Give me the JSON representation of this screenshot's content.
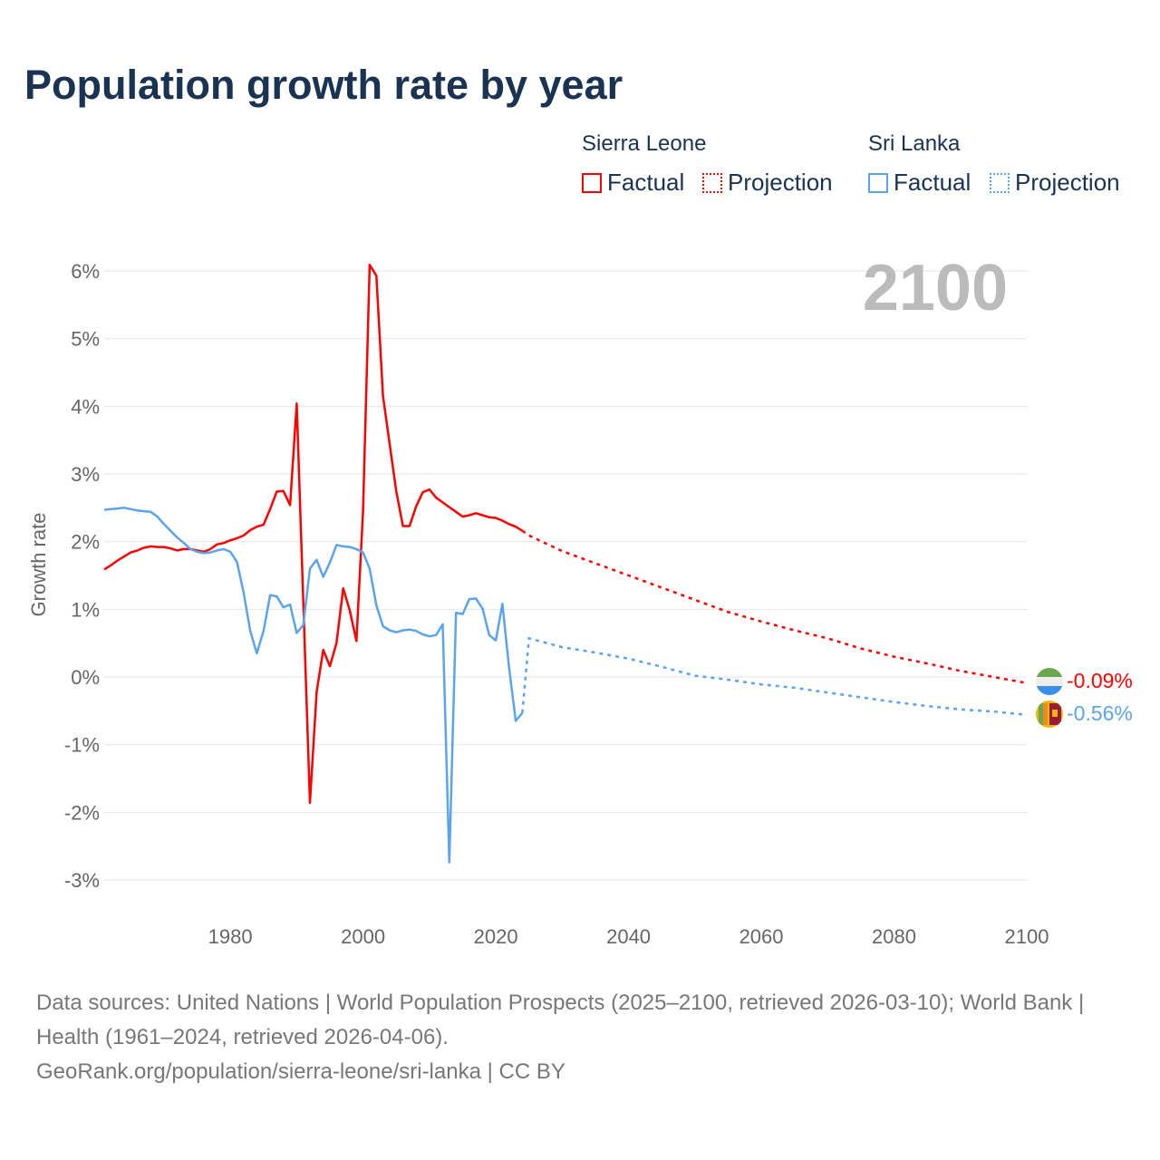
{
  "title": "Population growth rate by year",
  "legend": {
    "groups": [
      {
        "country": "Sierra Leone",
        "color": "#ff0000",
        "factual": "Factual",
        "projection": "Projection"
      },
      {
        "country": "Sri Lanka",
        "color": "#5ba4ec",
        "factual": "Factual",
        "projection": "Projection"
      }
    ]
  },
  "footer": {
    "sources": "Data sources: United Nations | World Population Prospects (2025–2100, retrieved 2026-03-10); World Bank | Health (1961–2024, retrieved 2026-04-06).",
    "credit": "GeoRank.org/population/sierra-leone/sri-lanka | CC BY"
  },
  "chart_data": {
    "type": "line",
    "title": "Population growth rate by year",
    "current_year_label": "2100",
    "xlabel": "",
    "ylabel": "Growth rate",
    "xlim": [
      1961,
      2100
    ],
    "ylim": [
      -3,
      6
    ],
    "x_ticks": [
      1980,
      2000,
      2020,
      2040,
      2060,
      2080,
      2100
    ],
    "x_tick_labels": [
      "1980",
      "2000",
      "2020",
      "2040",
      "2060",
      "2080",
      "2100"
    ],
    "y_ticks": [
      -3,
      -2,
      -1,
      0,
      1,
      2,
      3,
      4,
      5,
      6
    ],
    "y_tick_labels": [
      "-3%",
      "-2%",
      "-1%",
      "0%",
      "1%",
      "2%",
      "3%",
      "4%",
      "5%",
      "6%"
    ],
    "grid": true,
    "legend_position": "top-right",
    "series": [
      {
        "name": "Sierra Leone",
        "color": "#ff0000",
        "end_label": "-0.09%",
        "factual": {
          "x": [
            1961,
            1962,
            1963,
            1964,
            1965,
            1966,
            1967,
            1968,
            1969,
            1970,
            1971,
            1972,
            1973,
            1974,
            1975,
            1976,
            1977,
            1978,
            1979,
            1980,
            1981,
            1982,
            1983,
            1984,
            1985,
            1986,
            1987,
            1988,
            1989,
            1990,
            1991,
            1992,
            1993,
            1994,
            1995,
            1996,
            1997,
            1998,
            1999,
            2000,
            2001,
            2002,
            2003,
            2004,
            2005,
            2006,
            2007,
            2008,
            2009,
            2010,
            2011,
            2012,
            2013,
            2014,
            2015,
            2016,
            2017,
            2018,
            2019,
            2020,
            2021,
            2022,
            2023,
            2024
          ],
          "y": [
            1.59,
            1.65,
            1.72,
            1.78,
            1.84,
            1.87,
            1.91,
            1.93,
            1.92,
            1.92,
            1.9,
            1.87,
            1.89,
            1.89,
            1.87,
            1.85,
            1.89,
            1.96,
            1.98,
            2.02,
            2.05,
            2.09,
            2.17,
            2.22,
            2.25,
            2.48,
            2.74,
            2.75,
            2.54,
            4.04,
            1.1,
            -1.86,
            -0.22,
            0.4,
            0.16,
            0.5,
            1.31,
            0.98,
            0.53,
            2.45,
            6.09,
            5.93,
            4.15,
            3.45,
            2.75,
            2.23,
            2.23,
            2.52,
            2.73,
            2.77,
            2.65,
            2.58,
            2.51,
            2.44,
            2.37,
            2.39,
            2.42,
            2.39,
            2.36,
            2.35,
            2.31,
            2.26,
            2.22,
            2.16
          ]
        },
        "projection": {
          "x": [
            2024,
            2025,
            2030,
            2035,
            2040,
            2045,
            2050,
            2055,
            2060,
            2065,
            2070,
            2075,
            2080,
            2085,
            2090,
            2095,
            2100
          ],
          "y": [
            2.16,
            2.09,
            1.86,
            1.68,
            1.5,
            1.32,
            1.14,
            0.96,
            0.82,
            0.69,
            0.57,
            0.42,
            0.3,
            0.2,
            0.09,
            0.0,
            -0.09
          ]
        }
      },
      {
        "name": "Sri Lanka",
        "color": "#5ba4ec",
        "end_label": "-0.56%",
        "factual": {
          "x": [
            1961,
            1962,
            1963,
            1964,
            1965,
            1966,
            1967,
            1968,
            1969,
            1970,
            1971,
            1972,
            1973,
            1974,
            1975,
            1976,
            1977,
            1978,
            1979,
            1980,
            1981,
            1982,
            1983,
            1984,
            1985,
            1986,
            1987,
            1988,
            1989,
            1990,
            1991,
            1992,
            1993,
            1994,
            1995,
            1996,
            1997,
            1998,
            1999,
            2000,
            2001,
            2002,
            2003,
            2004,
            2005,
            2006,
            2007,
            2008,
            2009,
            2010,
            2011,
            2012,
            2013,
            2014,
            2015,
            2016,
            2017,
            2018,
            2019,
            2020,
            2021,
            2022,
            2023,
            2024
          ],
          "y": [
            2.47,
            2.48,
            2.49,
            2.5,
            2.48,
            2.46,
            2.45,
            2.44,
            2.37,
            2.26,
            2.16,
            2.06,
            1.98,
            1.89,
            1.85,
            1.83,
            1.84,
            1.87,
            1.89,
            1.85,
            1.7,
            1.25,
            0.68,
            0.35,
            0.68,
            1.21,
            1.19,
            1.03,
            1.07,
            0.65,
            0.77,
            1.6,
            1.73,
            1.48,
            1.69,
            1.95,
            1.93,
            1.92,
            1.89,
            1.84,
            1.6,
            1.06,
            0.75,
            0.69,
            0.66,
            0.69,
            0.7,
            0.68,
            0.63,
            0.6,
            0.62,
            0.78,
            -2.74,
            0.95,
            0.93,
            1.15,
            1.16,
            1.01,
            0.62,
            0.54,
            1.08,
            0.14,
            -0.65,
            -0.53
          ]
        },
        "projection": {
          "x": [
            2024,
            2025,
            2030,
            2035,
            2040,
            2045,
            2050,
            2055,
            2060,
            2065,
            2070,
            2075,
            2080,
            2085,
            2090,
            2095,
            2100
          ],
          "y": [
            -0.53,
            0.57,
            0.44,
            0.36,
            0.27,
            0.15,
            0.02,
            -0.04,
            -0.11,
            -0.16,
            -0.23,
            -0.3,
            -0.37,
            -0.43,
            -0.48,
            -0.51,
            -0.56
          ]
        }
      }
    ]
  }
}
